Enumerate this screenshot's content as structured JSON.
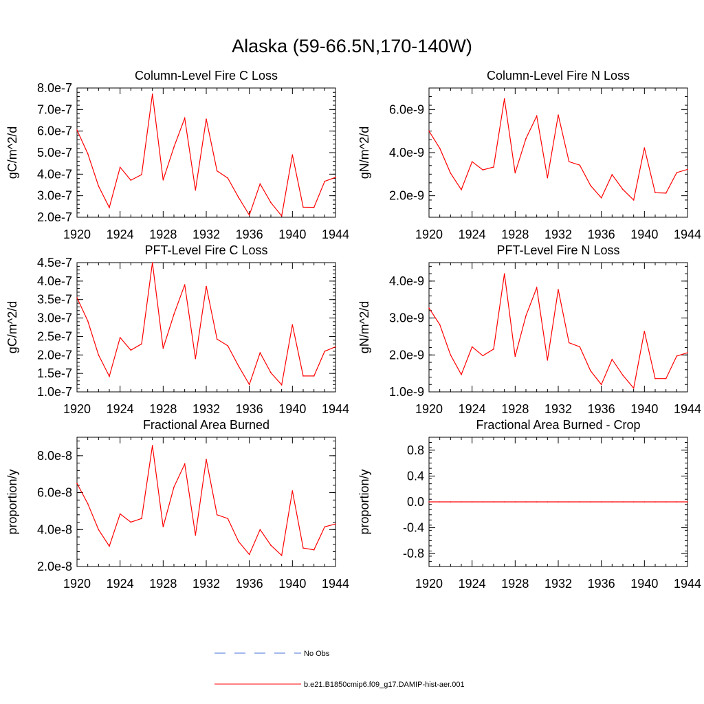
{
  "figure": {
    "title": "Alaska (59-66.5N,170-140W)",
    "line_color": "#ff0000",
    "obs_color": "#4a6fd8",
    "legend": [
      {
        "label": "No Obs",
        "style": "dashed",
        "color": "#4a6fd8"
      },
      {
        "label": "b.e21.B1850cmip6.f09_g17.DAMIP-hist-aer.001",
        "style": "solid",
        "color": "#ff0000"
      }
    ]
  },
  "chart_data": [
    {
      "type": "line",
      "title": "Column-Level Fire C Loss",
      "ylabel": "gC/m^2/d",
      "xlim": [
        1920,
        1944
      ],
      "ylim": [
        2e-07,
        8e-07
      ],
      "xticks": [
        "1920",
        "1924",
        "1928",
        "1932",
        "1936",
        "1940",
        "1944"
      ],
      "yticks": [
        {
          "v": 2e-07,
          "label": "2.0e-7"
        },
        {
          "v": 3e-07,
          "label": "3.0e-7"
        },
        {
          "v": 4e-07,
          "label": "4.0e-7"
        },
        {
          "v": 5e-07,
          "label": "5.0e-7"
        },
        {
          "v": 6e-07,
          "label": "6.0e-7"
        },
        {
          "v": 7e-07,
          "label": "7.0e-7"
        },
        {
          "v": 8e-07,
          "label": "8.0e-7"
        }
      ],
      "x": [
        1920,
        1921,
        1922,
        1923,
        1924,
        1925,
        1926,
        1927,
        1928,
        1929,
        1930,
        1931,
        1932,
        1933,
        1934,
        1935,
        1936,
        1937,
        1938,
        1939,
        1940,
        1941,
        1942,
        1943,
        1944
      ],
      "values": [
        6.05e-07,
        4.95e-07,
        3.45e-07,
        2.45e-07,
        4.32e-07,
        3.72e-07,
        3.98e-07,
        7.72e-07,
        3.73e-07,
        5.26e-07,
        6.6e-07,
        3.26e-07,
        6.56e-07,
        4.15e-07,
        3.82e-07,
        2.92e-07,
        2.1e-07,
        3.55e-07,
        2.68e-07,
        2.06e-07,
        4.9e-07,
        2.47e-07,
        2.46e-07,
        3.67e-07,
        3.85e-07
      ]
    },
    {
      "type": "line",
      "title": "Column-Level Fire N Loss",
      "ylabel": "gN/m^2/d",
      "xlim": [
        1920,
        1944
      ],
      "ylim": [
        1e-09,
        7e-09
      ],
      "xticks": [
        "1920",
        "1924",
        "1928",
        "1932",
        "1936",
        "1940",
        "1944"
      ],
      "yticks": [
        {
          "v": 2e-09,
          "label": "2.0e-9"
        },
        {
          "v": 4e-09,
          "label": "4.0e-9"
        },
        {
          "v": 6e-09,
          "label": "6.0e-9"
        }
      ],
      "x": [
        1920,
        1921,
        1922,
        1923,
        1924,
        1925,
        1926,
        1927,
        1928,
        1929,
        1930,
        1931,
        1932,
        1933,
        1934,
        1935,
        1936,
        1937,
        1938,
        1939,
        1940,
        1941,
        1942,
        1943,
        1944
      ],
      "values": [
        5e-09,
        4.2e-09,
        3.05e-09,
        2.28e-09,
        3.58e-09,
        3.2e-09,
        3.33e-09,
        6.5e-09,
        3.06e-09,
        4.65e-09,
        5.7e-09,
        2.83e-09,
        5.75e-09,
        3.58e-09,
        3.42e-09,
        2.47e-09,
        1.9e-09,
        2.98e-09,
        2.29e-09,
        1.8e-09,
        4.22e-09,
        2.14e-09,
        2.12e-09,
        3.07e-09,
        3.22e-09
      ]
    },
    {
      "type": "line",
      "title": "PFT-Level Fire C Loss",
      "ylabel": "gC/m^2/d",
      "xlim": [
        1920,
        1944
      ],
      "ylim": [
        1e-07,
        4.5e-07
      ],
      "xticks": [
        "1920",
        "1924",
        "1928",
        "1932",
        "1936",
        "1940",
        "1944"
      ],
      "yticks": [
        {
          "v": 1e-07,
          "label": "1.0e-7"
        },
        {
          "v": 1.5e-07,
          "label": "1.5e-7"
        },
        {
          "v": 2e-07,
          "label": "2.0e-7"
        },
        {
          "v": 2.5e-07,
          "label": "2.5e-7"
        },
        {
          "v": 3e-07,
          "label": "3.0e-7"
        },
        {
          "v": 3.5e-07,
          "label": "3.5e-7"
        },
        {
          "v": 4e-07,
          "label": "4.0e-7"
        },
        {
          "v": 4.5e-07,
          "label": "4.5e-7"
        }
      ],
      "x": [
        1920,
        1921,
        1922,
        1923,
        1924,
        1925,
        1926,
        1927,
        1928,
        1929,
        1930,
        1931,
        1932,
        1933,
        1934,
        1935,
        1936,
        1937,
        1938,
        1939,
        1940,
        1941,
        1942,
        1943,
        1944
      ],
      "values": [
        3.55e-07,
        2.92e-07,
        2e-07,
        1.42e-07,
        2.47e-07,
        2.13e-07,
        2.3e-07,
        4.5e-07,
        2.18e-07,
        3.1e-07,
        3.9e-07,
        1.9e-07,
        3.86e-07,
        2.43e-07,
        2.25e-07,
        1.7e-07,
        1.2e-07,
        2.06e-07,
        1.52e-07,
        1.19e-07,
        2.82e-07,
        1.43e-07,
        1.43e-07,
        2.1e-07,
        2.22e-07
      ]
    },
    {
      "type": "line",
      "title": "PFT-Level Fire N Loss",
      "ylabel": "gN/m^2/d",
      "xlim": [
        1920,
        1944
      ],
      "ylim": [
        1e-09,
        4.5e-09
      ],
      "xticks": [
        "1920",
        "1924",
        "1928",
        "1932",
        "1936",
        "1940",
        "1944"
      ],
      "yticks": [
        {
          "v": 1e-09,
          "label": "1.0e-9"
        },
        {
          "v": 2e-09,
          "label": "2.0e-9"
        },
        {
          "v": 3e-09,
          "label": "3.0e-9"
        },
        {
          "v": 4e-09,
          "label": "4.0e-9"
        }
      ],
      "x": [
        1920,
        1921,
        1922,
        1923,
        1924,
        1925,
        1926,
        1927,
        1928,
        1929,
        1930,
        1931,
        1932,
        1933,
        1934,
        1935,
        1936,
        1937,
        1938,
        1939,
        1940,
        1941,
        1942,
        1943,
        1944
      ],
      "values": [
        3.27e-09,
        2.82e-09,
        2e-09,
        1.47e-09,
        2.22e-09,
        1.98e-09,
        2.16e-09,
        4.2e-09,
        1.96e-09,
        3.06e-09,
        3.82e-09,
        1.86e-09,
        3.77e-09,
        2.33e-09,
        2.22e-09,
        1.57e-09,
        1.2e-09,
        1.88e-09,
        1.45e-09,
        1.1e-09,
        2.64e-09,
        1.36e-09,
        1.36e-09,
        1.97e-09,
        2.06e-09
      ]
    },
    {
      "type": "line",
      "title": "Fractional Area Burned",
      "ylabel": "proportion/y",
      "xlim": [
        1920,
        1944
      ],
      "ylim": [
        2e-08,
        9e-08
      ],
      "xticks": [
        "1920",
        "1924",
        "1928",
        "1932",
        "1936",
        "1940",
        "1944"
      ],
      "yticks": [
        {
          "v": 2e-08,
          "label": "2.0e-8"
        },
        {
          "v": 4e-08,
          "label": "4.0e-8"
        },
        {
          "v": 6e-08,
          "label": "6.0e-8"
        },
        {
          "v": 8e-08,
          "label": "8.0e-8"
        }
      ],
      "x": [
        1920,
        1921,
        1922,
        1923,
        1924,
        1925,
        1926,
        1927,
        1928,
        1929,
        1930,
        1931,
        1932,
        1933,
        1934,
        1935,
        1936,
        1937,
        1938,
        1939,
        1940,
        1941,
        1942,
        1943,
        1944
      ],
      "values": [
        6.5e-08,
        5.4e-08,
        4e-08,
        3.1e-08,
        4.85e-08,
        4.4e-08,
        4.6e-08,
        8.55e-08,
        4.15e-08,
        6.3e-08,
        7.55e-08,
        3.7e-08,
        7.8e-08,
        4.8e-08,
        4.6e-08,
        3.35e-08,
        2.65e-08,
        4e-08,
        3.15e-08,
        2.6e-08,
        6.1e-08,
        3e-08,
        2.9e-08,
        4.15e-08,
        4.3e-08
      ]
    },
    {
      "type": "line",
      "title": "Fractional Area Burned - Crop",
      "ylabel": "proportion/y",
      "xlim": [
        1920,
        1944
      ],
      "ylim": [
        -1.0,
        1.0
      ],
      "xticks": [
        "1920",
        "1924",
        "1928",
        "1932",
        "1936",
        "1940",
        "1944"
      ],
      "yticks": [
        {
          "v": -0.8,
          "label": "-0.8"
        },
        {
          "v": -0.4,
          "label": "-0.4"
        },
        {
          "v": 0.0,
          "label": "0.0"
        },
        {
          "v": 0.4,
          "label": "0.4"
        },
        {
          "v": 0.8,
          "label": "0.8"
        }
      ],
      "x": [
        1920,
        1921,
        1922,
        1923,
        1924,
        1925,
        1926,
        1927,
        1928,
        1929,
        1930,
        1931,
        1932,
        1933,
        1934,
        1935,
        1936,
        1937,
        1938,
        1939,
        1940,
        1941,
        1942,
        1943,
        1944
      ],
      "values": [
        0,
        0,
        0,
        0,
        0,
        0,
        0,
        0,
        0,
        0,
        0,
        0,
        0,
        0,
        0,
        0,
        0,
        0,
        0,
        0,
        0,
        0,
        0,
        0,
        0
      ]
    }
  ]
}
